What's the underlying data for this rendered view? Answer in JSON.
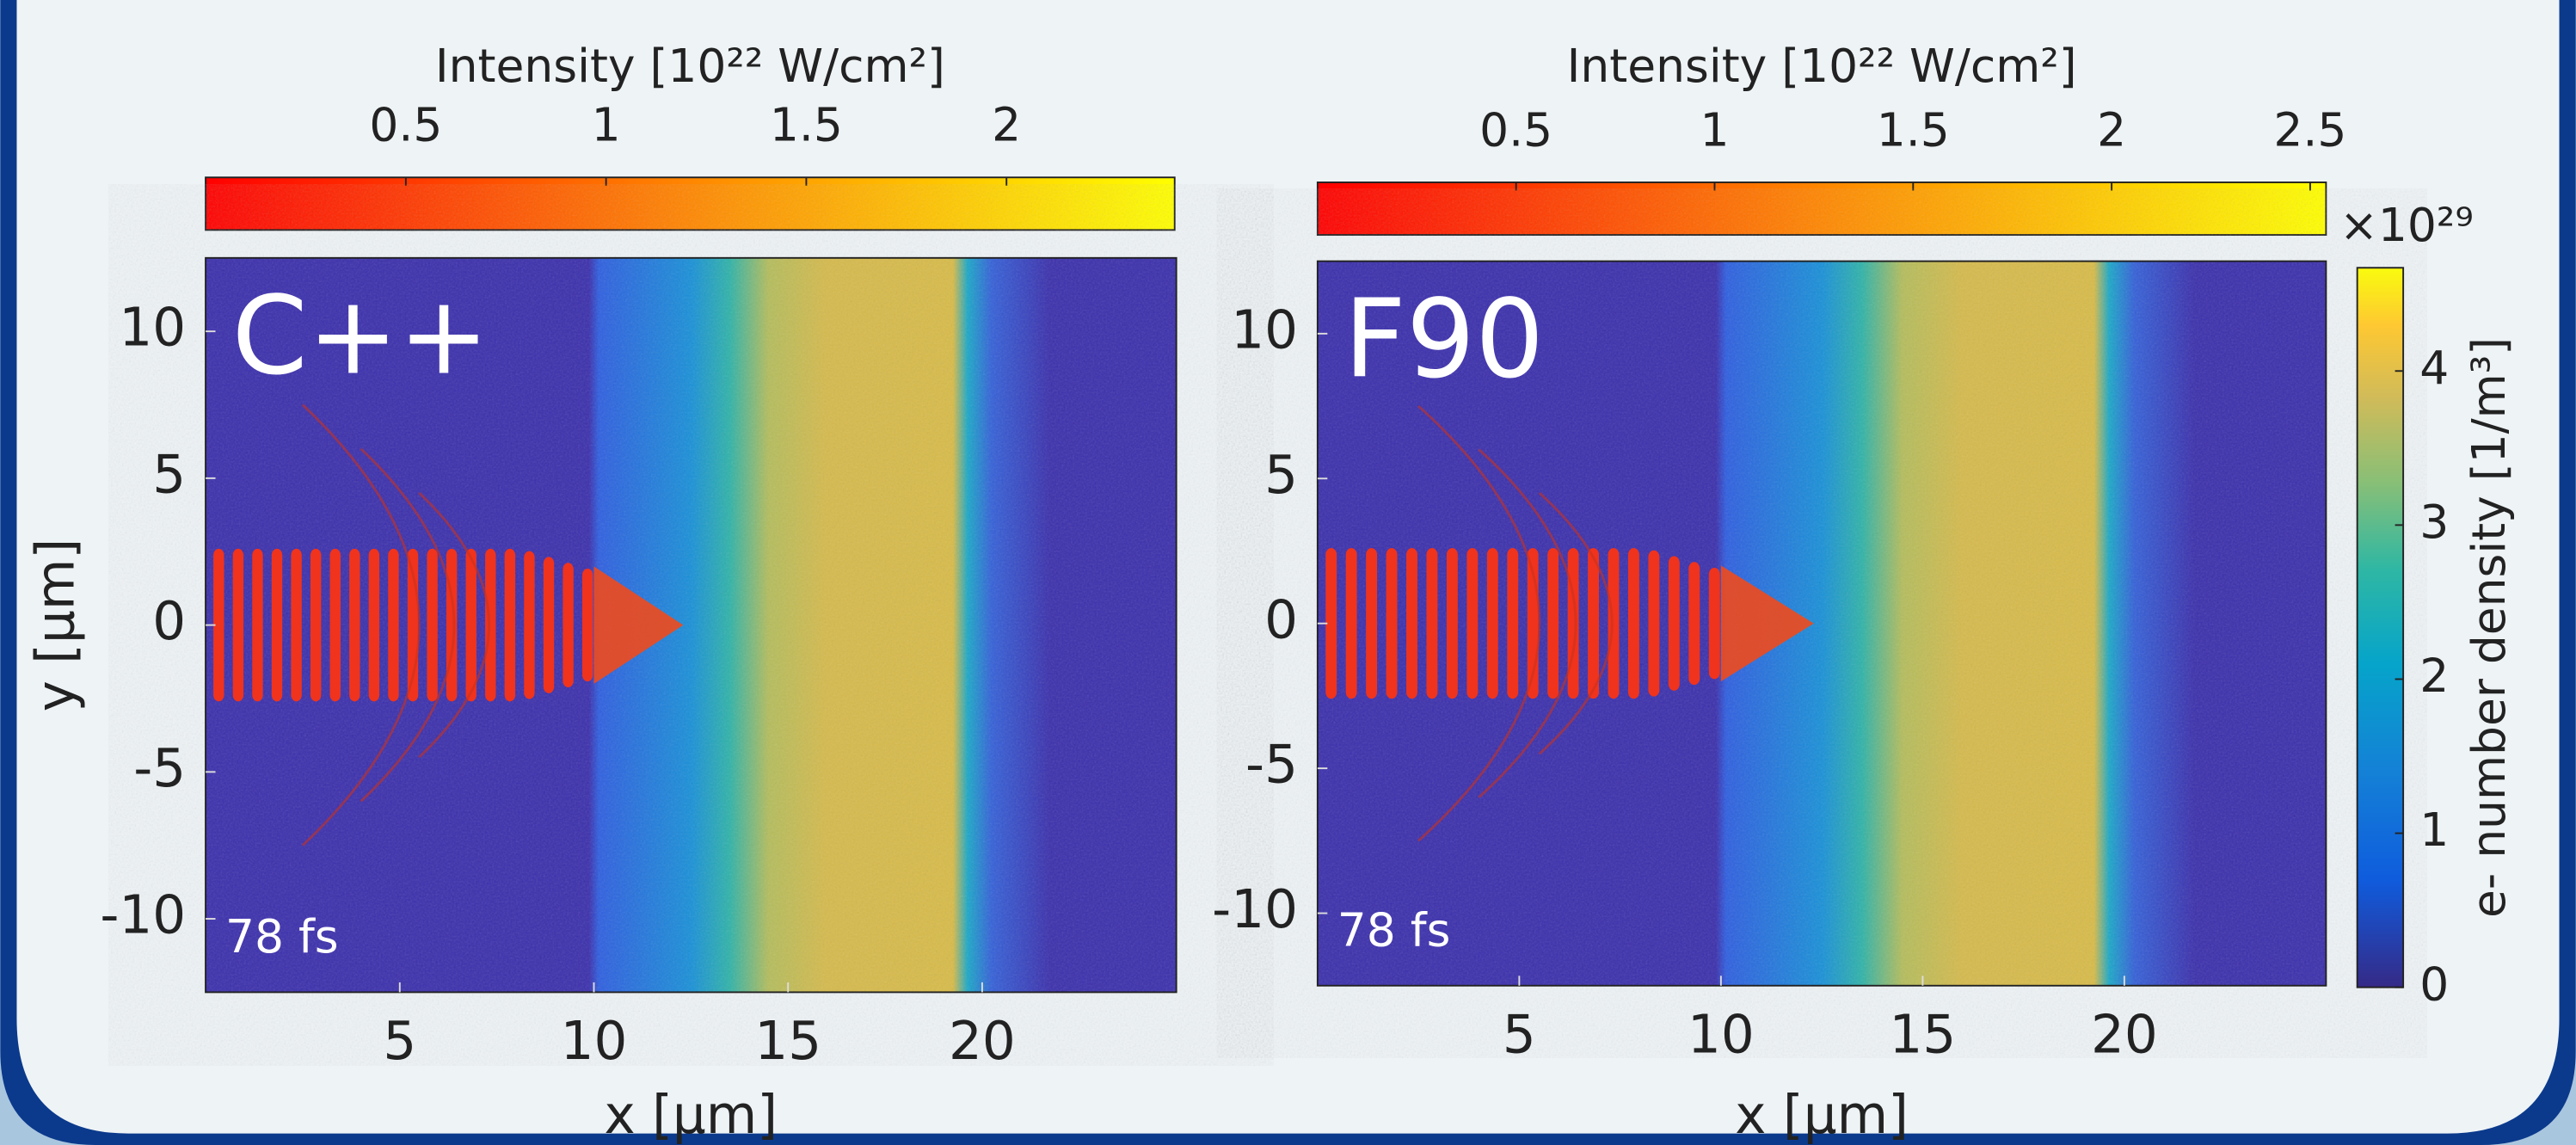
{
  "chart_data": [
    {
      "type": "heatmap",
      "annotation": "C++",
      "time_label": "78 fs",
      "xlabel": "x [μm]",
      "ylabel": "y [μm]",
      "xlim": [
        0,
        25
      ],
      "xticks": [
        5,
        10,
        15,
        20
      ],
      "ylim": [
        -12.5,
        12.5
      ],
      "yticks": [
        -10,
        -5,
        0,
        5,
        10
      ],
      "colorbar": {
        "label": "Intensity [10²² W/cm²]",
        "lim": [
          0,
          2.42
        ],
        "ticks": [
          0.5,
          1,
          1.5,
          2
        ],
        "color_low": "#ff0000",
        "color_high": "#ffff00"
      }
    },
    {
      "type": "heatmap",
      "annotation": "F90",
      "time_label": "78 fs",
      "xlabel": "x [μm]",
      "xlim": [
        0,
        25
      ],
      "xticks": [
        5,
        10,
        15,
        20
      ],
      "ylim": [
        -12.5,
        12.5
      ],
      "yticks": [
        -10,
        -5,
        0,
        5,
        10
      ],
      "colorbar": {
        "label": "Intensity [10²² W/cm²]",
        "lim": [
          0,
          2.54
        ],
        "ticks": [
          0.5,
          1,
          1.5,
          2,
          2.5
        ],
        "color_low": "#ff0000",
        "color_high": "#ffff00"
      },
      "density_colorbar": {
        "label": "e- number density [1/m³]",
        "multiplier": "×10²⁹",
        "lim": [
          0,
          4.67
        ],
        "ticks": [
          0,
          1,
          2,
          3,
          4
        ]
      }
    }
  ]
}
